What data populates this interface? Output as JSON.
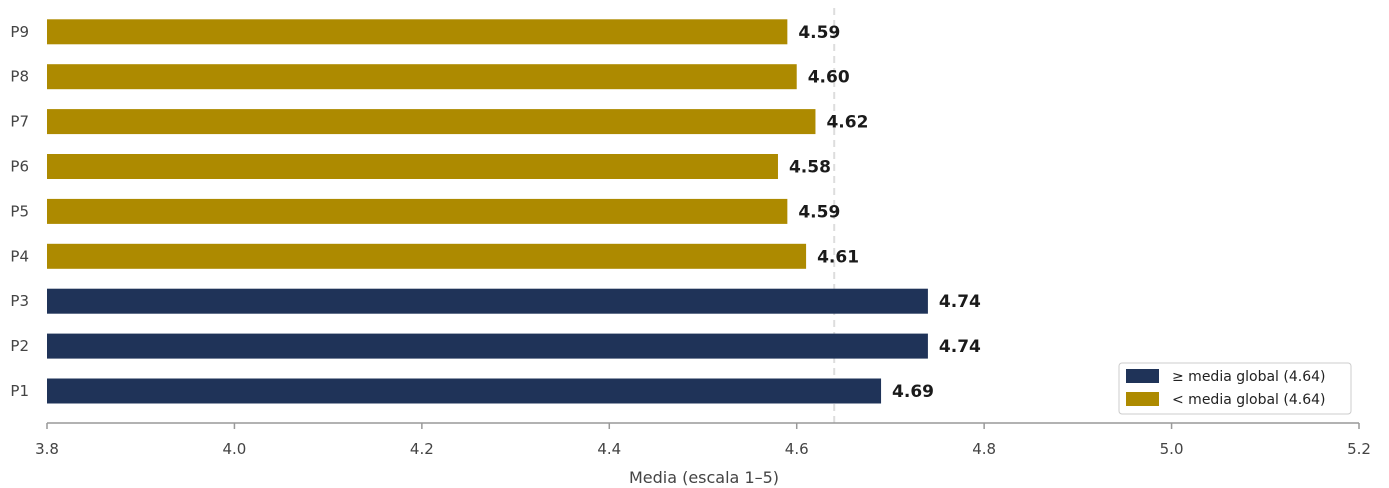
{
  "chart_data": {
    "type": "bar",
    "orientation": "horizontal",
    "categories": [
      "P1",
      "P2",
      "P3",
      "P4",
      "P5",
      "P6",
      "P7",
      "P8",
      "P9"
    ],
    "values": [
      4.69,
      4.74,
      4.74,
      4.61,
      4.59,
      4.58,
      4.62,
      4.6,
      4.59
    ],
    "value_labels": [
      "4.69",
      "4.74",
      "4.74",
      "4.61",
      "4.59",
      "4.58",
      "4.62",
      "4.60",
      "4.59"
    ],
    "reference_line": {
      "value": 4.64,
      "style": "dashed"
    },
    "xlabel": "Media (escala 1–5)",
    "xlim": [
      3.8,
      5.2
    ],
    "xticks": [
      3.8,
      4.0,
      4.2,
      4.4,
      4.6,
      4.8,
      5.0,
      5.2
    ],
    "xtick_labels": [
      "3.8",
      "4.0",
      "4.2",
      "4.4",
      "4.6",
      "4.8",
      "5.0",
      "5.2"
    ],
    "grid": false,
    "legend": {
      "placement": "bottom-right",
      "entries": [
        {
          "label": "≥ media global (4.64)",
          "color": "#1f3358"
        },
        {
          "label": "< media global (4.64)",
          "color": "#ad8a00"
        }
      ]
    },
    "colors": {
      "above": "#1f3358",
      "below": "#ad8a00",
      "reference_line": "#dddddd",
      "axis": "#999999"
    }
  }
}
